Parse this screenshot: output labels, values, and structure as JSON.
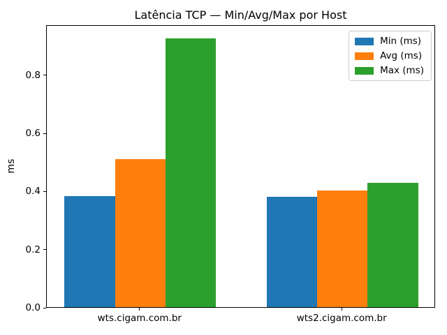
{
  "chart_data": {
    "type": "bar",
    "title": "Latência TCP — Min/Avg/Max por Host",
    "ylabel": "ms",
    "categories": [
      "wts.cigam.com.br",
      "wts2.cigam.com.br"
    ],
    "series": [
      {
        "name": "Min (ms)",
        "color": "#1f77b4",
        "values": [
          0.385,
          0.382
        ]
      },
      {
        "name": "Avg (ms)",
        "color": "#ff7f0e",
        "values": [
          0.512,
          0.404
        ]
      },
      {
        "name": "Max (ms)",
        "color": "#2ca02c",
        "values": [
          0.926,
          0.43
        ]
      }
    ],
    "ylim": [
      0,
      0.972
    ],
    "yticks": [
      "0.0",
      "0.2",
      "0.4",
      "0.6",
      "0.8"
    ],
    "grid": false,
    "legend_position": "upper right",
    "background_color": "#ffffff",
    "frame_color": "#000000"
  }
}
